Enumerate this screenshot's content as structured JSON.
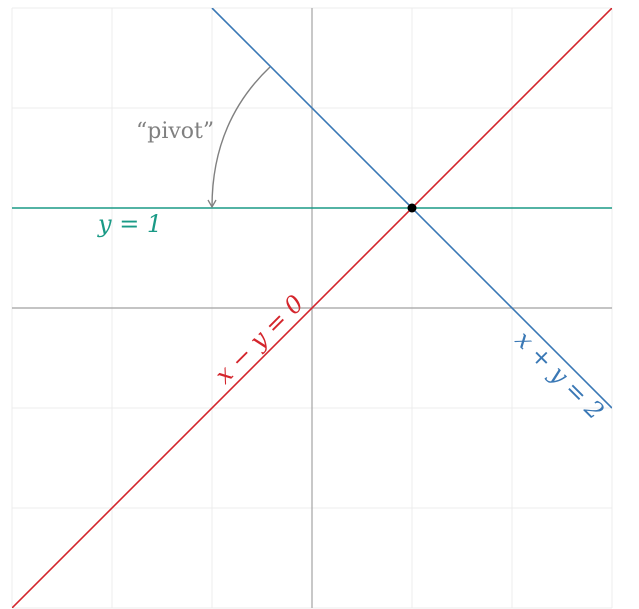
{
  "chart_data": {
    "type": "line",
    "title": "",
    "xlabel": "",
    "ylabel": "",
    "xlim": [
      -3,
      3
    ],
    "ylim": [
      -3,
      3
    ],
    "grid": true,
    "grid_step": 1,
    "series": [
      {
        "name": "x + y = 2",
        "equation": "y = 2 - x",
        "color": "#3a78b5"
      },
      {
        "name": "x − y = 0",
        "equation": "y = x",
        "color": "#d4252c"
      },
      {
        "name": "y = 1",
        "equation": "y = 1",
        "color": "#1a9a86"
      }
    ],
    "intersection_point": {
      "x": 1,
      "y": 1
    },
    "annotations": [
      {
        "text": "“pivot”",
        "color": "#808080"
      }
    ]
  },
  "labels": {
    "line_blue": "x + y = 2",
    "line_red": "x − y = 0",
    "line_teal": "y = 1",
    "pivot": "“pivot”"
  },
  "colors": {
    "blue": "#3a78b5",
    "red": "#d4252c",
    "teal": "#1a9a86",
    "annotation": "#808080",
    "grid": "#ececec",
    "axis": "#b0b0b0",
    "point": "#000000"
  }
}
